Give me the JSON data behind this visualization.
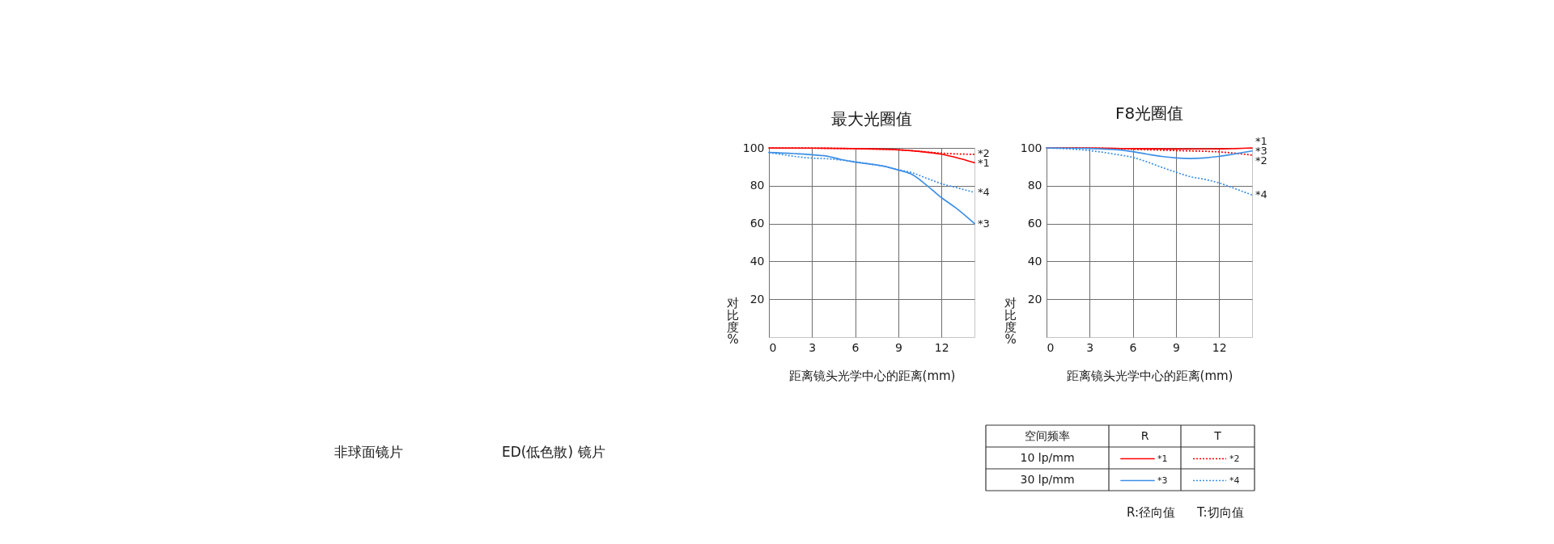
{
  "chart_data": [
    {
      "type": "line",
      "title": "最大光圈值",
      "xlabel": "距离镜头光学中心的距离(mm)",
      "ylabel": "对比度%",
      "xlim": [
        0,
        14.3
      ],
      "ylim": [
        0,
        100
      ],
      "xticks": [
        0,
        3,
        6,
        9,
        12
      ],
      "yticks": [
        20,
        40,
        60,
        80,
        100
      ],
      "grid": true,
      "series": [
        {
          "name": "*1",
          "color": "#ff0000",
          "line_style": "solid",
          "x": [
            0,
            3,
            6,
            9,
            10.5,
            12,
            13,
            14.3
          ],
          "values": [
            100,
            99.9,
            99.6,
            99.0,
            98.1,
            96.7,
            95.0,
            92.2
          ]
        },
        {
          "name": "*2",
          "color": "#ff0000",
          "line_style": "dotted",
          "x": [
            0,
            3,
            6,
            9,
            10.5,
            11.5,
            12.5,
            14.3
          ],
          "values": [
            100,
            99.9,
            99.6,
            99.0,
            98.2,
            97.5,
            97.0,
            96.6
          ]
        },
        {
          "name": "*3",
          "color": "#3d8fe6",
          "line_style": "solid",
          "x": [
            0,
            3,
            4,
            5,
            6,
            7,
            8,
            9,
            10,
            11,
            12,
            13,
            14.3
          ],
          "values": [
            97.6,
            96.4,
            95.7,
            93.9,
            92.5,
            91.5,
            90.3,
            88.3,
            85.8,
            80.1,
            73.7,
            68.3,
            60
          ]
        },
        {
          "name": "*4",
          "color": "#3d8fe6",
          "line_style": "dotted",
          "x": [
            0,
            1,
            2,
            3,
            4,
            5,
            6,
            7,
            8,
            9,
            10,
            11,
            12,
            13,
            14.3
          ],
          "values": [
            97.6,
            96.4,
            95.3,
            94.6,
            94.3,
            93.6,
            92.7,
            91.5,
            90.3,
            88.5,
            86.8,
            83.9,
            81.1,
            79.1,
            76.5
          ]
        }
      ]
    },
    {
      "type": "line",
      "title": "F8光圈值",
      "xlabel": "距离镜头光学中心的距离(mm)",
      "ylabel": "对比度%",
      "xlim": [
        0,
        14.3
      ],
      "ylim": [
        0,
        100
      ],
      "xticks": [
        0,
        3,
        6,
        9,
        12
      ],
      "yticks": [
        20,
        40,
        60,
        80,
        100
      ],
      "grid": true,
      "legend": "bottom",
      "legend_title": "空间频率",
      "annotations": [
        "R",
        "T",
        "10 lp/mm",
        "30 lp/mm",
        "R:径向值",
        "T:切向值"
      ],
      "series": [
        {
          "name": "*1",
          "color": "#ff0000",
          "line_style": "solid",
          "x": [
            0,
            3,
            6,
            9,
            12,
            14.3
          ],
          "values": [
            100,
            100,
            99.6,
            99.4,
            99.5,
            100
          ]
        },
        {
          "name": "*2",
          "color": "#ff0000",
          "line_style": "dotted",
          "x": [
            0,
            3,
            5,
            6,
            9,
            12,
            14.3
          ],
          "values": [
            100,
            99.9,
            99.6,
            99.3,
            98.6,
            97.9,
            96.2
          ]
        },
        {
          "name": "*3",
          "color": "#3d8fe6",
          "line_style": "solid",
          "x": [
            0,
            3,
            5,
            6,
            7,
            8,
            9,
            10,
            11,
            12,
            13,
            14.3
          ],
          "values": [
            100,
            99.7,
            99.0,
            98.0,
            96.7,
            95.5,
            94.7,
            94.4,
            94.7,
            95.5,
            96.7,
            98.4
          ]
        },
        {
          "name": "*4",
          "color": "#3d8fe6",
          "line_style": "dotted",
          "x": [
            0,
            1,
            2,
            3,
            4,
            5,
            6,
            7,
            8,
            9,
            10,
            11,
            12,
            13,
            14.3
          ],
          "values": [
            100,
            99.7,
            99.3,
            98.6,
            97.6,
            96.4,
            95.0,
            92.6,
            89.8,
            87.2,
            84.8,
            83.4,
            81.5,
            78.8,
            75.1
          ]
        }
      ]
    },
    {
      "type": "other",
      "annotations": [
        "非球面镜片",
        "ED(低色散) 镜片"
      ]
    }
  ]
}
